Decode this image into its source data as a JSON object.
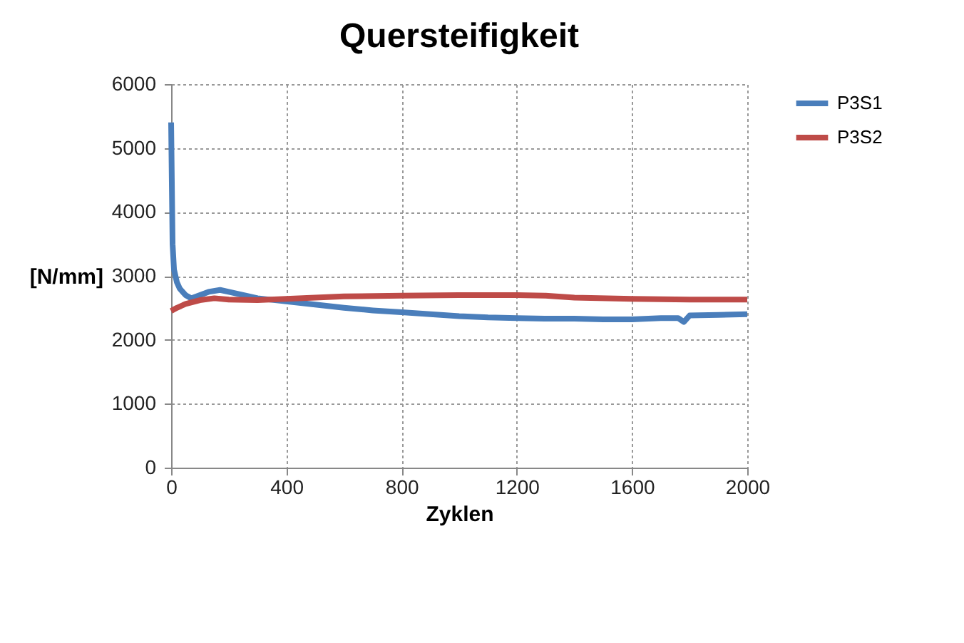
{
  "chart_data": {
    "type": "line",
    "title": "Quersteifigkeit",
    "xlabel": "Zyklen",
    "ylabel": "[N/mm]",
    "xlim": [
      0,
      2000
    ],
    "ylim": [
      0,
      6000
    ],
    "xticks": [
      0,
      400,
      800,
      1200,
      1600,
      2000
    ],
    "yticks": [
      0,
      1000,
      2000,
      3000,
      4000,
      5000,
      6000
    ],
    "grid": true,
    "legend": "right",
    "marker": "none",
    "line_style": "solid",
    "series": [
      {
        "name": "P3S1",
        "color": "#4a7ebb",
        "x": [
          0,
          5,
          10,
          20,
          30,
          50,
          70,
          100,
          130,
          170,
          200,
          250,
          300,
          400,
          500,
          600,
          700,
          800,
          900,
          1000,
          1100,
          1200,
          1300,
          1400,
          1500,
          1600,
          1700,
          1760,
          1780,
          1800,
          1900,
          2000
        ],
        "values": [
          5400,
          3500,
          3100,
          2900,
          2800,
          2700,
          2650,
          2700,
          2750,
          2780,
          2750,
          2700,
          2650,
          2600,
          2550,
          2500,
          2460,
          2430,
          2400,
          2370,
          2350,
          2340,
          2330,
          2330,
          2320,
          2320,
          2340,
          2340,
          2280,
          2380,
          2390,
          2400
        ]
      },
      {
        "name": "P3S2",
        "color": "#be4b48",
        "x": [
          0,
          20,
          50,
          100,
          150,
          200,
          300,
          400,
          500,
          600,
          800,
          1000,
          1200,
          1300,
          1400,
          1600,
          1800,
          2000
        ],
        "values": [
          2450,
          2500,
          2560,
          2620,
          2650,
          2630,
          2620,
          2640,
          2660,
          2680,
          2690,
          2700,
          2700,
          2690,
          2660,
          2640,
          2630,
          2630
        ]
      }
    ]
  }
}
